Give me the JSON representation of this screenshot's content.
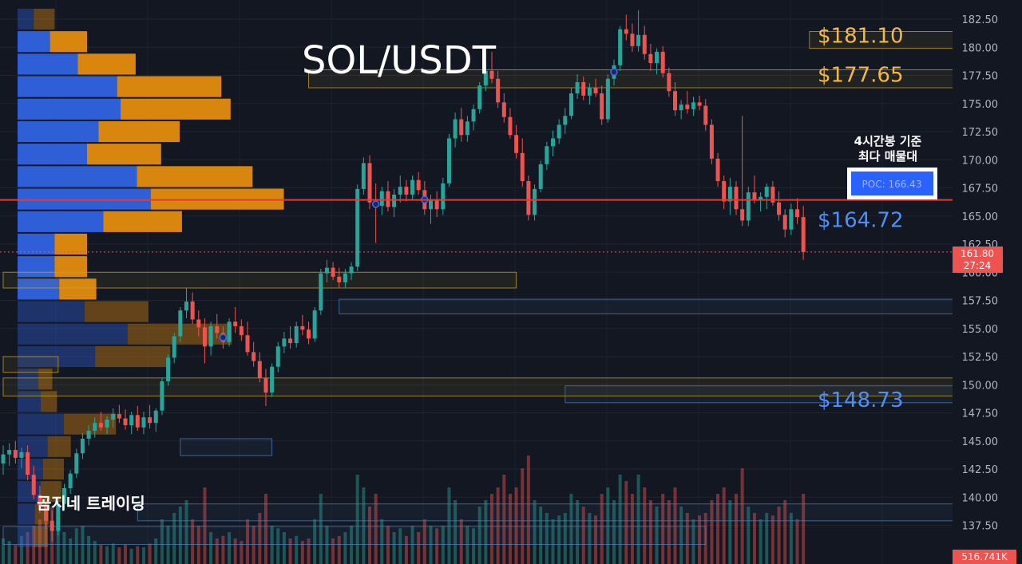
{
  "chart_data": {
    "type": "candlestick",
    "title": "SOL/USDT",
    "ylim": [
      135.5,
      183.5
    ],
    "y_ticks": [
      "182.50",
      "180.00",
      "177.50",
      "175.00",
      "172.50",
      "170.00",
      "167.50",
      "165.00",
      "162.50",
      "160.00",
      "157.50",
      "155.00",
      "152.50",
      "150.00",
      "147.50",
      "145.00",
      "142.50",
      "140.00",
      "137.50"
    ],
    "y_tick_values": [
      182.5,
      180,
      177.5,
      175,
      172.5,
      170,
      167.5,
      165,
      162.5,
      160,
      157.5,
      155,
      152.5,
      150,
      147.5,
      145,
      142.5,
      140,
      137.5
    ],
    "current_price": {
      "label": "161.80",
      "countdown": "27:24",
      "value": 161.8
    },
    "volume_label": "516.741K",
    "poc": {
      "label": "POC: 166.43",
      "value": 166.43,
      "note_line1": "4시간봉 기준",
      "note_line2": "최다 매물대"
    },
    "levels": [
      {
        "label": "$181.10",
        "value": 181.1,
        "color": "#f5b942"
      },
      {
        "label": "$177.65",
        "value": 177.65,
        "color": "#f5b942"
      },
      {
        "label": "$164.72",
        "value": 164.72,
        "color": "#4f8ef7"
      },
      {
        "label": "$148.73",
        "value": 148.73,
        "color": "#4f8ef7"
      }
    ],
    "watermark": "곰지네 트레이딩",
    "colors": {
      "up": "#26a69a",
      "down": "#ef5350",
      "poc_line": "#e53935",
      "vp_up": "#2f5fd6",
      "vp_down": "#d9860f"
    },
    "candles": [
      [
        143.0,
        144.6,
        142.0,
        143.8
      ],
      [
        143.8,
        144.8,
        142.8,
        144.2
      ],
      [
        144.2,
        145.0,
        143.0,
        143.5
      ],
      [
        143.5,
        144.4,
        142.6,
        144.0
      ],
      [
        144.0,
        144.6,
        141.5,
        142.0
      ],
      [
        142.0,
        142.8,
        139.8,
        140.2
      ],
      [
        140.2,
        141.0,
        138.6,
        139.3
      ],
      [
        139.3,
        140.0,
        137.2,
        137.9
      ],
      [
        137.9,
        138.8,
        136.1,
        137.0
      ],
      [
        137.0,
        139.8,
        136.6,
        139.4
      ],
      [
        139.4,
        141.2,
        138.9,
        140.8
      ],
      [
        140.8,
        142.4,
        140.3,
        142.1
      ],
      [
        142.1,
        144.3,
        141.7,
        143.9
      ],
      [
        143.9,
        145.7,
        143.4,
        145.2
      ],
      [
        145.2,
        146.4,
        144.6,
        145.9
      ],
      [
        145.9,
        147.1,
        145.3,
        146.6
      ],
      [
        146.6,
        147.6,
        145.9,
        146.2
      ],
      [
        146.2,
        147.2,
        145.6,
        146.9
      ],
      [
        146.9,
        147.9,
        146.2,
        147.4
      ],
      [
        147.4,
        148.2,
        146.6,
        147.0
      ],
      [
        147.0,
        147.8,
        146.0,
        146.4
      ],
      [
        146.4,
        147.6,
        145.6,
        147.3
      ],
      [
        147.3,
        148.1,
        145.9,
        146.2
      ],
      [
        146.2,
        147.6,
        145.6,
        147.1
      ],
      [
        147.1,
        148.2,
        146.1,
        146.6
      ],
      [
        146.6,
        147.9,
        145.8,
        147.7
      ],
      [
        147.7,
        150.6,
        147.3,
        150.3
      ],
      [
        150.3,
        152.7,
        149.9,
        152.4
      ],
      [
        152.4,
        154.6,
        151.9,
        154.3
      ],
      [
        154.3,
        156.9,
        153.8,
        156.6
      ],
      [
        156.6,
        158.6,
        155.9,
        157.4
      ],
      [
        157.4,
        158.2,
        155.4,
        155.8
      ],
      [
        155.8,
        156.6,
        154.3,
        155.1
      ],
      [
        155.1,
        155.9,
        151.9,
        153.4
      ],
      [
        153.4,
        155.6,
        152.6,
        155.2
      ],
      [
        155.2,
        156.3,
        154.1,
        154.6
      ],
      [
        154.6,
        155.2,
        153.2,
        153.8
      ],
      [
        153.8,
        155.9,
        153.4,
        155.6
      ],
      [
        155.6,
        156.9,
        154.6,
        155.2
      ],
      [
        155.2,
        155.8,
        153.9,
        154.4
      ],
      [
        154.4,
        155.6,
        152.6,
        152.9
      ],
      [
        152.9,
        153.8,
        151.6,
        152.1
      ],
      [
        152.1,
        152.9,
        150.2,
        150.6
      ],
      [
        150.6,
        151.4,
        148.1,
        149.3
      ],
      [
        149.3,
        151.9,
        148.9,
        151.6
      ],
      [
        151.6,
        153.8,
        151.1,
        153.4
      ],
      [
        153.4,
        154.7,
        152.8,
        154.1
      ],
      [
        154.1,
        155.2,
        153.2,
        153.7
      ],
      [
        153.7,
        155.6,
        153.3,
        155.2
      ],
      [
        155.2,
        156.2,
        154.4,
        154.9
      ],
      [
        154.9,
        155.6,
        153.6,
        154.1
      ],
      [
        154.1,
        156.9,
        153.8,
        156.6
      ],
      [
        156.6,
        160.3,
        156.2,
        159.9
      ],
      [
        159.9,
        161.1,
        159.1,
        160.4
      ],
      [
        160.4,
        160.9,
        159.3,
        159.6
      ],
      [
        159.6,
        160.4,
        158.6,
        159.1
      ],
      [
        159.1,
        160.3,
        158.6,
        159.9
      ],
      [
        159.9,
        160.9,
        159.3,
        160.5
      ],
      [
        160.5,
        167.8,
        160.1,
        167.4
      ],
      [
        167.4,
        170.2,
        166.9,
        169.7
      ],
      [
        169.7,
        170.4,
        165.6,
        166.2
      ],
      [
        166.2,
        167.9,
        162.6,
        165.9
      ],
      [
        165.9,
        167.6,
        165.1,
        167.2
      ],
      [
        167.2,
        168.1,
        165.4,
        165.8
      ],
      [
        165.8,
        167.4,
        164.9,
        166.9
      ],
      [
        166.9,
        168.6,
        166.2,
        167.6
      ],
      [
        167.6,
        168.2,
        166.3,
        166.9
      ],
      [
        166.9,
        168.6,
        166.4,
        168.2
      ],
      [
        168.2,
        168.9,
        166.9,
        167.3
      ],
      [
        167.3,
        168.1,
        165.1,
        165.6
      ],
      [
        165.6,
        166.9,
        164.3,
        166.4
      ],
      [
        166.4,
        167.2,
        164.9,
        165.6
      ],
      [
        165.6,
        168.4,
        165.1,
        167.9
      ],
      [
        167.9,
        172.3,
        167.6,
        171.9
      ],
      [
        171.9,
        174.2,
        171.1,
        173.6
      ],
      [
        173.6,
        174.6,
        171.6,
        172.2
      ],
      [
        172.2,
        173.9,
        171.6,
        173.4
      ],
      [
        173.4,
        174.9,
        172.6,
        174.5
      ],
      [
        174.5,
        176.9,
        174.1,
        176.6
      ],
      [
        176.6,
        178.6,
        176.1,
        177.9
      ],
      [
        177.9,
        179.6,
        176.8,
        177.2
      ],
      [
        177.2,
        177.9,
        174.6,
        175.1
      ],
      [
        175.1,
        175.9,
        173.3,
        173.8
      ],
      [
        173.8,
        174.6,
        171.9,
        172.2
      ],
      [
        172.2,
        173.1,
        170.1,
        170.6
      ],
      [
        170.6,
        171.9,
        167.6,
        168.1
      ],
      [
        168.1,
        168.6,
        164.6,
        165.1
      ],
      [
        165.1,
        167.8,
        164.6,
        167.4
      ],
      [
        167.4,
        169.9,
        167.1,
        169.6
      ],
      [
        169.6,
        171.6,
        169.1,
        171.2
      ],
      [
        171.2,
        172.6,
        170.3,
        171.9
      ],
      [
        171.9,
        173.6,
        171.4,
        173.1
      ],
      [
        173.1,
        174.6,
        172.3,
        173.9
      ],
      [
        173.9,
        176.4,
        173.6,
        175.9
      ],
      [
        175.9,
        177.6,
        175.4,
        176.9
      ],
      [
        176.9,
        177.4,
        175.3,
        175.7
      ],
      [
        175.7,
        176.8,
        174.9,
        176.4
      ],
      [
        176.4,
        177.2,
        175.6,
        175.9
      ],
      [
        175.9,
        176.6,
        173.1,
        173.6
      ],
      [
        173.6,
        177.6,
        173.3,
        177.2
      ],
      [
        177.2,
        178.9,
        176.6,
        178.4
      ],
      [
        178.4,
        181.9,
        177.9,
        181.6
      ],
      [
        181.6,
        182.9,
        180.6,
        181.2
      ],
      [
        181.2,
        182.1,
        179.6,
        180.1
      ],
      [
        180.1,
        183.3,
        179.6,
        181.1
      ],
      [
        181.1,
        181.9,
        178.9,
        179.4
      ],
      [
        179.4,
        180.3,
        177.9,
        178.6
      ],
      [
        178.6,
        179.9,
        177.6,
        179.6
      ],
      [
        179.6,
        180.1,
        177.3,
        177.7
      ],
      [
        177.7,
        178.2,
        175.6,
        176.1
      ],
      [
        176.1,
        176.9,
        173.9,
        174.4
      ],
      [
        174.4,
        175.3,
        173.6,
        174.9
      ],
      [
        174.9,
        176.1,
        174.1,
        174.5
      ],
      [
        174.5,
        175.6,
        173.9,
        175.1
      ],
      [
        175.1,
        175.7,
        174.4,
        174.8
      ],
      [
        174.8,
        175.4,
        172.6,
        173.1
      ],
      [
        173.1,
        173.6,
        169.6,
        170.1
      ],
      [
        170.1,
        170.6,
        167.6,
        168.1
      ],
      [
        168.1,
        168.6,
        165.6,
        166.3
      ],
      [
        166.3,
        168.4,
        165.1,
        167.6
      ],
      [
        167.6,
        168.1,
        165.1,
        165.6
      ],
      [
        165.6,
        173.9,
        164.1,
        164.6
      ],
      [
        164.6,
        167.6,
        164.1,
        167.1
      ],
      [
        167.1,
        168.6,
        166.1,
        166.4
      ],
      [
        166.4,
        167.1,
        165.4,
        166.7
      ],
      [
        166.7,
        167.9,
        165.6,
        167.6
      ],
      [
        167.6,
        168.1,
        165.9,
        166.2
      ],
      [
        166.2,
        167.2,
        164.6,
        165.1
      ],
      [
        165.1,
        165.6,
        163.1,
        163.8
      ],
      [
        163.8,
        166.1,
        163.3,
        165.6
      ],
      [
        165.6,
        166.6,
        164.3,
        164.9
      ],
      [
        164.9,
        165.9,
        161.1,
        161.8
      ]
    ],
    "volumes": [
      0.2,
      0.18,
      0.15,
      0.22,
      0.25,
      0.3,
      0.35,
      0.4,
      0.45,
      0.3,
      0.25,
      0.2,
      0.28,
      0.3,
      0.22,
      0.18,
      0.15,
      0.14,
      0.16,
      0.13,
      0.15,
      0.12,
      0.14,
      0.13,
      0.16,
      0.2,
      0.35,
      0.3,
      0.4,
      0.45,
      0.5,
      0.35,
      0.3,
      0.6,
      0.25,
      0.2,
      0.22,
      0.25,
      0.2,
      0.18,
      0.35,
      0.3,
      0.4,
      0.55,
      0.3,
      0.28,
      0.25,
      0.2,
      0.22,
      0.18,
      0.2,
      0.35,
      0.55,
      0.3,
      0.2,
      0.22,
      0.25,
      0.3,
      0.7,
      0.6,
      0.45,
      0.55,
      0.35,
      0.3,
      0.25,
      0.28,
      0.22,
      0.3,
      0.25,
      0.35,
      0.3,
      0.28,
      0.3,
      0.6,
      0.5,
      0.35,
      0.3,
      0.28,
      0.45,
      0.5,
      0.55,
      0.6,
      0.7,
      0.55,
      0.6,
      0.75,
      0.85,
      0.5,
      0.45,
      0.4,
      0.35,
      0.38,
      0.4,
      0.55,
      0.5,
      0.45,
      0.4,
      0.38,
      0.55,
      0.6,
      0.5,
      0.7,
      0.65,
      0.55,
      0.7,
      0.6,
      0.5,
      0.45,
      0.55,
      0.5,
      0.6,
      0.45,
      0.4,
      0.35,
      0.38,
      0.4,
      0.5,
      0.55,
      0.6,
      0.5,
      0.55,
      0.75,
      0.45,
      0.4,
      0.35,
      0.4,
      0.38,
      0.45,
      0.5,
      0.4,
      0.35,
      0.55
    ],
    "volume_profile": [
      {
        "low": 181.5,
        "high": 183.5,
        "up": 14,
        "down": 18
      },
      {
        "low": 179.5,
        "high": 181.5,
        "up": 28,
        "down": 32
      },
      {
        "low": 177.5,
        "high": 179.5,
        "up": 52,
        "down": 50
      },
      {
        "low": 175.5,
        "high": 177.5,
        "up": 86,
        "down": 90
      },
      {
        "low": 173.5,
        "high": 175.5,
        "up": 89,
        "down": 95
      },
      {
        "low": 171.5,
        "high": 173.5,
        "up": 70,
        "down": 70
      },
      {
        "low": 169.5,
        "high": 171.5,
        "up": 60,
        "down": 64
      },
      {
        "low": 167.5,
        "high": 169.5,
        "up": 103,
        "down": 100
      },
      {
        "low": 165.5,
        "high": 167.5,
        "up": 115,
        "down": 115
      },
      {
        "low": 163.5,
        "high": 165.5,
        "up": 74,
        "down": 68
      },
      {
        "low": 161.5,
        "high": 163.5,
        "up": 32,
        "down": 28
      },
      {
        "low": 159.5,
        "high": 161.5,
        "up": 32,
        "down": 28
      },
      {
        "low": 157.5,
        "high": 159.5,
        "up": 36,
        "down": 32
      },
      {
        "low": 155.5,
        "high": 157.5,
        "up": 58,
        "down": 55
      },
      {
        "low": 153.5,
        "high": 155.5,
        "up": 95,
        "down": 90
      },
      {
        "low": 151.5,
        "high": 153.5,
        "up": 67,
        "down": 65
      },
      {
        "low": 149.5,
        "high": 151.5,
        "up": 18,
        "down": 12
      },
      {
        "low": 147.5,
        "high": 149.5,
        "up": 20,
        "down": 14
      },
      {
        "low": 145.5,
        "high": 147.5,
        "up": 40,
        "down": 45
      },
      {
        "low": 143.5,
        "high": 145.5,
        "up": 26,
        "down": 20
      },
      {
        "low": 141.5,
        "high": 143.5,
        "up": 22,
        "down": 18
      },
      {
        "low": 139.5,
        "high": 141.5,
        "up": 20,
        "down": 18
      },
      {
        "low": 137.5,
        "high": 139.5,
        "up": 15,
        "down": 12
      },
      {
        "low": 135.5,
        "high": 137.5,
        "up": 14,
        "down": 12
      }
    ],
    "zones": [
      {
        "low": 179.9,
        "high": 181.4,
        "from": 132,
        "to": 254,
        "color": "#c9a227"
      },
      {
        "low": 176.4,
        "high": 178.0,
        "from": 50,
        "to": 254,
        "color": "#c9a227"
      },
      {
        "low": 163.4,
        "high": 165.3,
        "from": 174,
        "to": 254,
        "color": "#4a7fb8"
      },
      {
        "low": 158.6,
        "high": 160.0,
        "from": 0,
        "to": 84,
        "color": "#c9a227"
      },
      {
        "low": 156.3,
        "high": 157.6,
        "from": 55,
        "to": 229,
        "color": "#4a7fb8"
      },
      {
        "low": 151.1,
        "high": 152.5,
        "from": 0,
        "to": 9,
        "color": "#c9a227"
      },
      {
        "low": 149.0,
        "high": 150.6,
        "from": 0,
        "to": 185,
        "color": "#c9a227"
      },
      {
        "low": 148.4,
        "high": 149.9,
        "from": 92,
        "to": 254,
        "color": "#4a7fb8"
      },
      {
        "low": 143.7,
        "high": 145.2,
        "from": 29,
        "to": 44,
        "color": "#4a7fb8"
      },
      {
        "low": 137.9,
        "high": 139.4,
        "from": 22,
        "to": 197,
        "color": "#4a7fb8"
      },
      {
        "low": 135.8,
        "high": 137.4,
        "from": 0,
        "to": 115,
        "color": "#4a7fb8"
      }
    ],
    "markers": [
      36,
      69,
      61,
      100,
      195,
      196,
      230,
      230
    ]
  }
}
